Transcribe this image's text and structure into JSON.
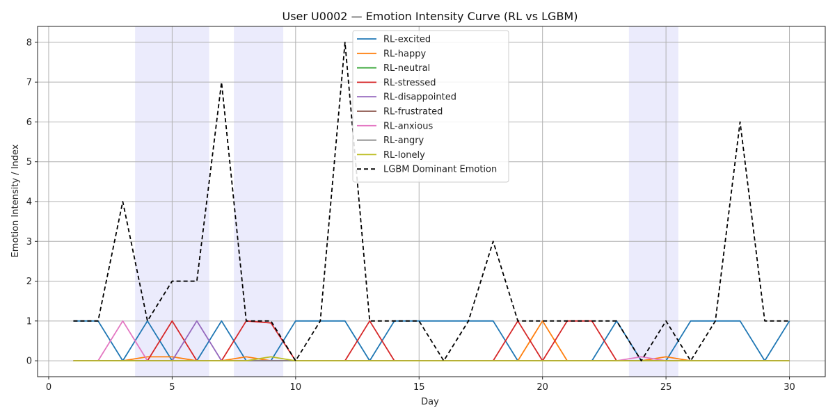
{
  "chart_data": {
    "type": "line",
    "title": "User U0002 — Emotion Intensity Curve (RL vs LGBM)",
    "xlabel": "Day",
    "ylabel": "Emotion Intensity / Index",
    "xlim": [
      -0.45,
      31.45
    ],
    "ylim": [
      -0.4,
      8.4
    ],
    "xticks": [
      0,
      5,
      10,
      15,
      20,
      25,
      30
    ],
    "yticks": [
      0,
      1,
      2,
      3,
      4,
      5,
      6,
      7,
      8
    ],
    "grid": true,
    "legend_position": "upper-center",
    "x": [
      1,
      2,
      3,
      4,
      5,
      6,
      7,
      8,
      9,
      10,
      11,
      12,
      13,
      14,
      15,
      16,
      17,
      18,
      19,
      20,
      21,
      22,
      23,
      24,
      25,
      26,
      27,
      28,
      29,
      30
    ],
    "shaded_regions": [
      {
        "start": 3.5,
        "end": 6.5,
        "color": "#e8e8fc"
      },
      {
        "start": 7.5,
        "end": 9.5,
        "color": "#e8e8fc"
      },
      {
        "start": 23.5,
        "end": 25.5,
        "color": "#e8e8fc"
      }
    ],
    "series": [
      {
        "name": "RL-excited",
        "color": "#1f77b4",
        "dash": false,
        "values": [
          1,
          1,
          0,
          1,
          0,
          0,
          1,
          0,
          0,
          1,
          1,
          1,
          0,
          1,
          1,
          1,
          1,
          1,
          0,
          0,
          0,
          0,
          1,
          0,
          0,
          1,
          1,
          1,
          0,
          1
        ]
      },
      {
        "name": "RL-happy",
        "color": "#ff7f0e",
        "dash": false,
        "values": [
          0,
          0,
          0,
          0.1,
          0.1,
          0,
          0,
          0.1,
          0,
          0,
          0,
          0,
          0,
          0,
          0,
          0,
          0,
          0,
          0,
          1,
          0,
          0,
          0,
          0,
          0.1,
          0,
          0,
          0,
          0,
          0
        ]
      },
      {
        "name": "RL-neutral",
        "color": "#2ca02c",
        "dash": false,
        "values": [
          0,
          0,
          0,
          0,
          0,
          0,
          0,
          0,
          0,
          0,
          0,
          0,
          0,
          0,
          0,
          0,
          0,
          0,
          0,
          0,
          0,
          0,
          0,
          0,
          0,
          0,
          0,
          0,
          0,
          0
        ]
      },
      {
        "name": "RL-stressed",
        "color": "#d62728",
        "dash": false,
        "values": [
          0,
          0,
          0,
          0,
          1,
          0,
          0,
          1,
          0.95,
          0,
          0,
          0,
          1,
          0,
          0,
          0,
          0,
          0,
          1,
          0,
          1,
          1,
          0,
          0,
          0,
          0,
          0,
          0,
          0,
          0
        ]
      },
      {
        "name": "RL-disappointed",
        "color": "#9467bd",
        "dash": false,
        "values": [
          0,
          0,
          0,
          0,
          0,
          1,
          0,
          0,
          0,
          0,
          0,
          0,
          0,
          0,
          0,
          0,
          0,
          0,
          0,
          0,
          0,
          0,
          0,
          0,
          0,
          0,
          0,
          0,
          0,
          0
        ]
      },
      {
        "name": "RL-frustrated",
        "color": "#8c564b",
        "dash": false,
        "values": [
          0,
          0,
          0,
          0,
          0,
          0,
          0,
          0,
          0,
          0,
          0,
          0,
          0,
          0,
          0,
          0,
          0,
          0,
          0,
          0,
          0,
          0,
          0,
          0,
          0,
          0,
          0,
          0,
          0,
          0
        ]
      },
      {
        "name": "RL-anxious",
        "color": "#e377c2",
        "dash": false,
        "values": [
          0,
          0,
          1,
          0,
          0,
          0,
          0,
          0,
          0,
          0,
          0,
          0,
          0,
          0,
          0,
          0,
          0,
          0,
          0,
          0,
          0,
          0,
          0,
          0.1,
          0,
          0,
          0,
          0,
          0,
          0
        ]
      },
      {
        "name": "RL-angry",
        "color": "#7f7f7f",
        "dash": false,
        "values": [
          0,
          0,
          0,
          0,
          0,
          0,
          0,
          0,
          0,
          0,
          0,
          0,
          0,
          0,
          0,
          0,
          0,
          0,
          0,
          0,
          0,
          0,
          0,
          0,
          0,
          0,
          0,
          0,
          0,
          0
        ]
      },
      {
        "name": "RL-lonely",
        "color": "#bcbd22",
        "dash": false,
        "values": [
          0,
          0,
          0,
          0,
          0,
          0,
          0,
          0,
          0.1,
          0,
          0,
          0,
          0,
          0,
          0,
          0,
          0,
          0,
          0,
          0,
          0,
          0,
          0,
          0,
          0,
          0,
          0,
          0,
          0,
          0
        ]
      },
      {
        "name": "LGBM Dominant Emotion",
        "color": "#000000",
        "dash": true,
        "values": [
          1,
          1,
          4,
          1,
          2,
          2,
          7,
          1,
          1,
          0,
          1,
          8,
          1,
          1,
          1,
          0,
          1,
          3,
          1,
          1,
          1,
          1,
          1,
          0,
          1,
          0,
          1,
          6,
          1,
          1
        ]
      }
    ]
  }
}
